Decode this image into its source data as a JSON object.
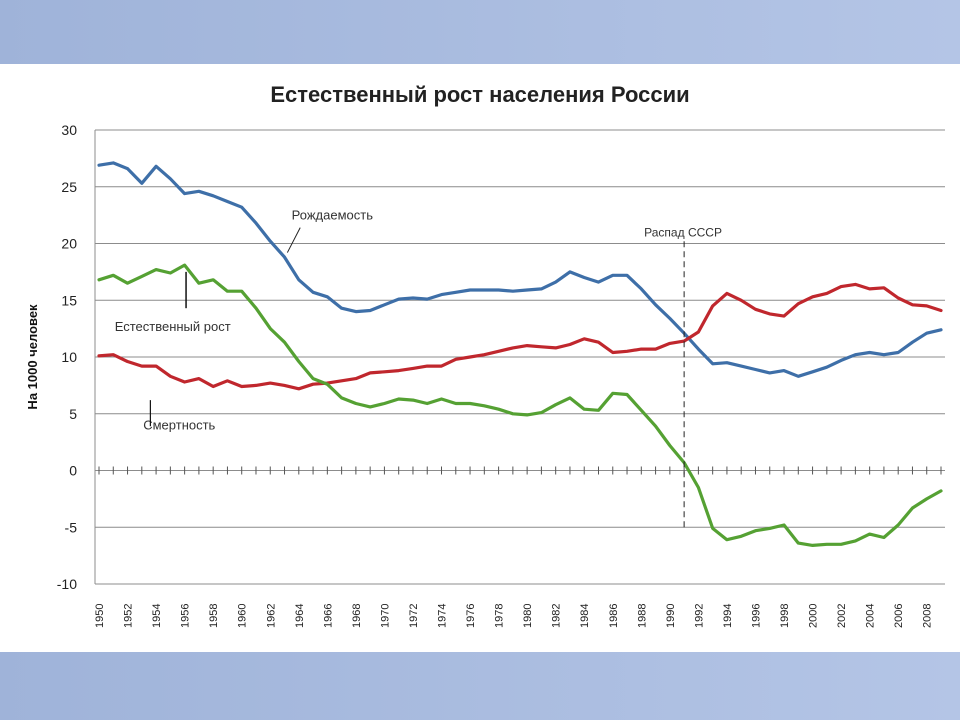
{
  "chart_data": {
    "type": "line",
    "title": "Естественный рост населения России",
    "ylabel": "На 1000 человек",
    "xlabel": "",
    "ylim": [
      -10,
      30
    ],
    "xlim": [
      1950,
      2009
    ],
    "y_ticks": [
      30,
      25,
      20,
      15,
      10,
      5,
      0,
      -5,
      -10
    ],
    "x_ticks": [
      1950,
      1952,
      1954,
      1956,
      1958,
      1960,
      1962,
      1964,
      1966,
      1968,
      1970,
      1972,
      1974,
      1976,
      1978,
      1980,
      1982,
      1984,
      1986,
      1988,
      1990,
      1992,
      1994,
      1996,
      1998,
      2000,
      2002,
      2004,
      2006,
      2008
    ],
    "grid": "horizontal",
    "x": [
      1950,
      1951,
      1952,
      1953,
      1954,
      1955,
      1956,
      1957,
      1958,
      1959,
      1960,
      1961,
      1962,
      1963,
      1964,
      1965,
      1966,
      1967,
      1968,
      1969,
      1970,
      1971,
      1972,
      1973,
      1974,
      1975,
      1976,
      1977,
      1978,
      1979,
      1980,
      1981,
      1982,
      1983,
      1984,
      1985,
      1986,
      1987,
      1988,
      1989,
      1990,
      1991,
      1992,
      1993,
      1994,
      1995,
      1996,
      1997,
      1998,
      1999,
      2000,
      2001,
      2002,
      2003,
      2004,
      2005,
      2006,
      2007,
      2008,
      2009
    ],
    "series": [
      {
        "name": "Рождаемость",
        "color": "#3e6fa8",
        "values": [
          26.9,
          27.1,
          26.6,
          25.3,
          26.8,
          25.7,
          24.4,
          24.6,
          24.2,
          23.7,
          23.2,
          21.8,
          20.2,
          18.8,
          16.8,
          15.7,
          15.3,
          14.3,
          14.0,
          14.1,
          14.6,
          15.1,
          15.2,
          15.1,
          15.5,
          15.7,
          15.9,
          15.9,
          15.9,
          15.8,
          15.9,
          16.0,
          16.6,
          17.5,
          17.0,
          16.6,
          17.2,
          17.2,
          16.0,
          14.6,
          13.4,
          12.1,
          10.7,
          9.4,
          9.5,
          9.2,
          8.9,
          8.6,
          8.8,
          8.3,
          8.7,
          9.1,
          9.7,
          10.2,
          10.4,
          10.2,
          10.4,
          11.3,
          12.1,
          12.4
        ]
      },
      {
        "name": "Смертность",
        "color": "#c0272d",
        "values": [
          10.1,
          10.2,
          9.6,
          9.2,
          9.2,
          8.3,
          7.8,
          8.1,
          7.4,
          7.9,
          7.4,
          7.5,
          7.7,
          7.5,
          7.2,
          7.6,
          7.7,
          7.9,
          8.1,
          8.6,
          8.7,
          8.8,
          9.0,
          9.2,
          9.2,
          9.8,
          10.0,
          10.2,
          10.5,
          10.8,
          11.0,
          10.9,
          10.8,
          11.1,
          11.6,
          11.3,
          10.4,
          10.5,
          10.7,
          10.7,
          11.2,
          11.4,
          12.2,
          14.5,
          15.6,
          15.0,
          14.2,
          13.8,
          13.6,
          14.7,
          15.3,
          15.6,
          16.2,
          16.4,
          16.0,
          16.1,
          15.2,
          14.6,
          14.5,
          14.1
        ]
      },
      {
        "name": "Естественный рост",
        "color": "#55a133",
        "values": [
          16.8,
          17.2,
          16.5,
          17.1,
          17.7,
          17.4,
          18.1,
          16.5,
          16.8,
          15.8,
          15.8,
          14.3,
          12.5,
          11.3,
          9.6,
          8.1,
          7.6,
          6.4,
          5.9,
          5.6,
          5.9,
          6.3,
          6.2,
          5.9,
          6.3,
          5.9,
          5.9,
          5.7,
          5.4,
          5.0,
          4.9,
          5.1,
          5.8,
          6.4,
          5.4,
          5.3,
          6.8,
          6.7,
          5.3,
          3.9,
          2.2,
          0.7,
          -1.5,
          -5.1,
          -6.1,
          -5.8,
          -5.3,
          -5.1,
          -4.8,
          -6.4,
          -6.6,
          -6.5,
          -6.5,
          -6.2,
          -5.6,
          -5.9,
          -4.8,
          -3.3,
          -2.5,
          -1.8
        ]
      }
    ],
    "annotations": [
      {
        "text": "Рождаемость",
        "x": 1963.5,
        "y": 19.5
      },
      {
        "text": "Естественный рост",
        "x": 1956,
        "y": 17
      },
      {
        "text": "Смертность",
        "x": 1953,
        "y": 7.5
      },
      {
        "text": "Распад СССР",
        "x": 1991,
        "y": 21
      }
    ]
  }
}
